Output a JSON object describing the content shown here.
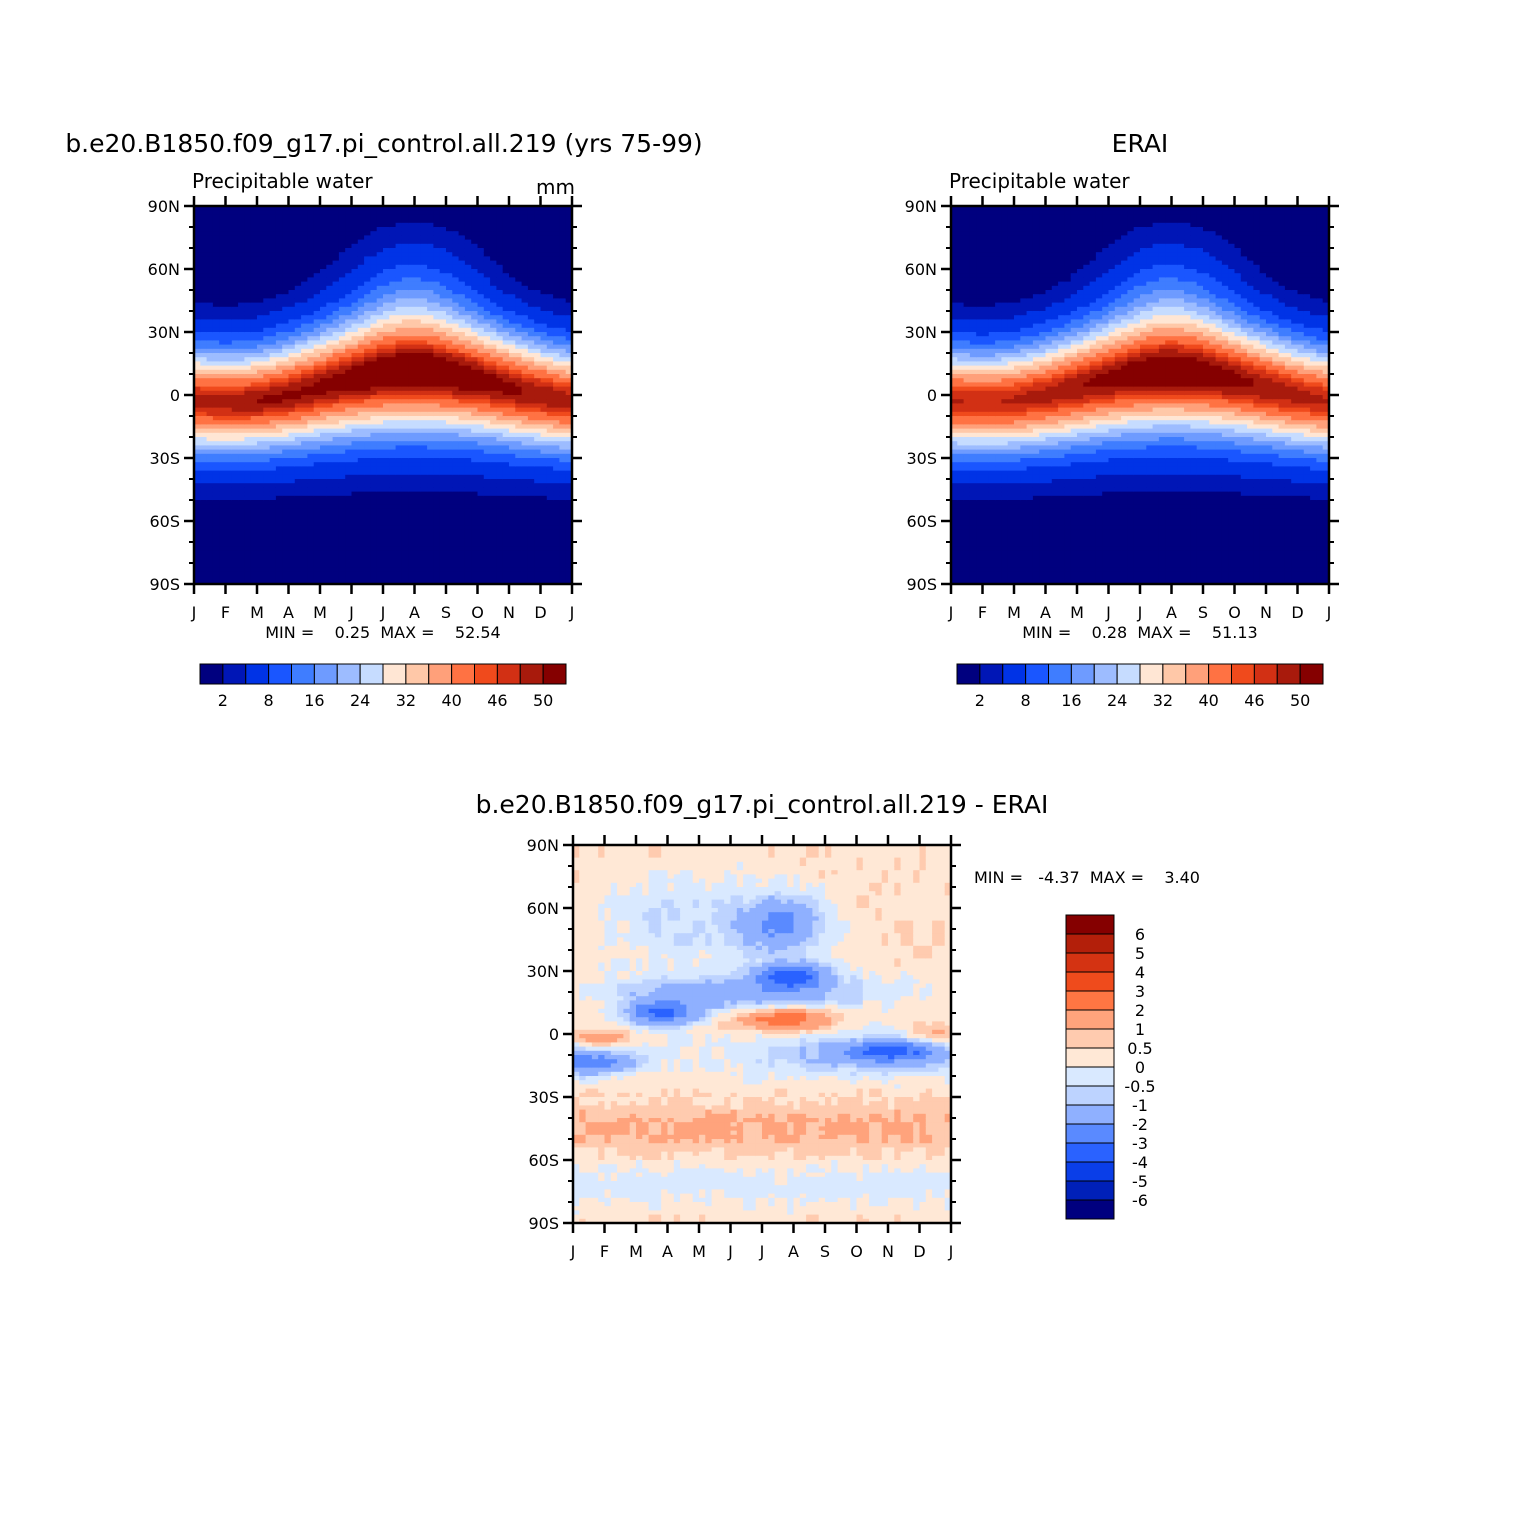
{
  "panels": [
    {
      "id": "model",
      "title": "b.e20.B1850.f09_g17.pi_control.all.219 (yrs 75-99)",
      "left_label": "Precipitable water",
      "right_label": "mm",
      "stat_text": "MIN =    0.25  MAX =    52.54"
    },
    {
      "id": "obs",
      "title": "ERAI",
      "left_label": "Precipitable water",
      "right_label": "",
      "stat_text": "MIN =    0.28  MAX =    51.13"
    },
    {
      "id": "diff",
      "title": "b.e20.B1850.f09_g17.pi_control.all.219 - ERAI",
      "left_label": "",
      "right_label": "",
      "stat_text": "MIN =   -4.37  MAX =    3.40"
    }
  ],
  "chart_data": [
    {
      "type": "heatmap",
      "title": "b.e20.B1850.f09_g17.pi_control.all.219 (yrs 75-99)",
      "variable": "Precipitable water",
      "units": "mm",
      "x_ticks": [
        "J",
        "F",
        "M",
        "A",
        "M",
        "J",
        "J",
        "A",
        "S",
        "O",
        "N",
        "D",
        "J"
      ],
      "y_ticks": [
        "90N",
        "60N",
        "30N",
        "0",
        "30S",
        "60S",
        "90S"
      ],
      "ylim": [
        -90,
        90
      ],
      "min": 0.25,
      "max": 52.54,
      "colorbar_levels": [
        2,
        4,
        8,
        12,
        16,
        20,
        24,
        28,
        32,
        36,
        40,
        44,
        46,
        48,
        50
      ],
      "colorbar_labels": [
        "2",
        "8",
        "16",
        "24",
        "32",
        "40",
        "46",
        "50"
      ],
      "colors": [
        "#00007f",
        "#0016b6",
        "#0033e6",
        "#1a56ff",
        "#3f7dff",
        "#6e9bff",
        "#9dbcff",
        "#c6dcff",
        "#ffe6d4",
        "#ffc8a8",
        "#ffa07a",
        "#ff7243",
        "#f04a1c",
        "#d23014",
        "#a81a0c",
        "#850000"
      ]
    },
    {
      "type": "heatmap",
      "title": "ERAI",
      "variable": "Precipitable water",
      "x_ticks": [
        "J",
        "F",
        "M",
        "A",
        "M",
        "J",
        "J",
        "A",
        "S",
        "O",
        "N",
        "D",
        "J"
      ],
      "y_ticks": [
        "90N",
        "60N",
        "30N",
        "0",
        "30S",
        "60S",
        "90S"
      ],
      "ylim": [
        -90,
        90
      ],
      "min": 0.28,
      "max": 51.13,
      "colorbar_levels": [
        2,
        4,
        8,
        12,
        16,
        20,
        24,
        28,
        32,
        36,
        40,
        44,
        46,
        48,
        50
      ],
      "colorbar_labels": [
        "2",
        "8",
        "16",
        "24",
        "32",
        "40",
        "46",
        "50"
      ],
      "colors": [
        "#00007f",
        "#0016b6",
        "#0033e6",
        "#1a56ff",
        "#3f7dff",
        "#6e9bff",
        "#9dbcff",
        "#c6dcff",
        "#ffe6d4",
        "#ffc8a8",
        "#ffa07a",
        "#ff7243",
        "#f04a1c",
        "#d23014",
        "#a81a0c",
        "#850000"
      ]
    },
    {
      "type": "heatmap",
      "title": "b.e20.B1850.f09_g17.pi_control.all.219 - ERAI",
      "x_ticks": [
        "J",
        "F",
        "M",
        "A",
        "M",
        "J",
        "J",
        "A",
        "S",
        "O",
        "N",
        "D",
        "J"
      ],
      "y_ticks": [
        "90N",
        "60N",
        "30N",
        "0",
        "30S",
        "60S",
        "90S"
      ],
      "ylim": [
        -90,
        90
      ],
      "min": -4.37,
      "max": 3.4,
      "colorbar_levels": [
        -6,
        -5,
        -4,
        -3,
        -2,
        -1,
        -0.5,
        0,
        0.5,
        1,
        2,
        3,
        4,
        5,
        6
      ],
      "colorbar_labels": [
        "6",
        "5",
        "4",
        "3",
        "2",
        "1",
        "0.5",
        "0",
        "-0.5",
        "-1",
        "-2",
        "-3",
        "-4",
        "-5",
        "-6"
      ],
      "colors": [
        "#850000",
        "#b31f0a",
        "#d43312",
        "#ef4b1c",
        "#ff7643",
        "#ffa37c",
        "#ffcbaf",
        "#ffe8d6",
        "#d9e9ff",
        "#bdd3ff",
        "#8fb0ff",
        "#5a8aff",
        "#2a62ff",
        "#0a3ee8",
        "#0020b8",
        "#00007f"
      ]
    }
  ]
}
